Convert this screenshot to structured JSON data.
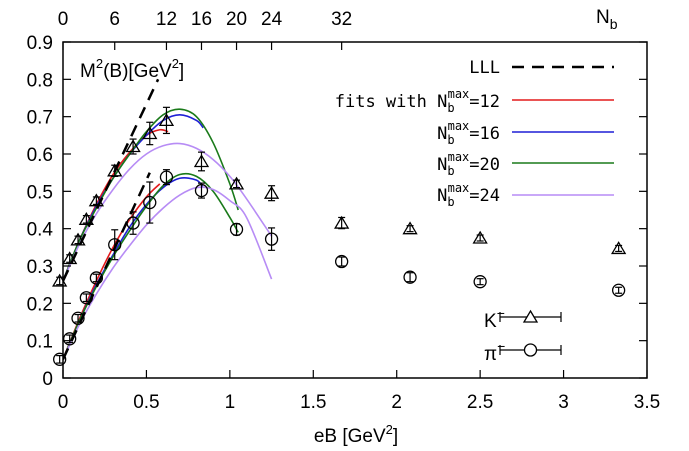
{
  "chart_data": {
    "type": "scatter",
    "xlabel": "eB [GeV",
    "xlabel_sup": "2",
    "xlabel_end": "]",
    "ylabel": "M",
    "ylabel_sup": "2",
    "ylabel_end": "(B)[GeV",
    "ylabel_sup2": "2",
    "ylabel_close": "]",
    "top_axis_label": "N",
    "top_axis_label_sub": "b",
    "xlim": [
      0,
      3.5
    ],
    "ylim": [
      0,
      0.9
    ],
    "x_ticks": [
      "0",
      "0.5",
      "1",
      "1.5",
      "2",
      "2.5",
      "3",
      "3.5"
    ],
    "y_ticks": [
      "0",
      "0.1",
      "0.2",
      "0.3",
      "0.4",
      "0.5",
      "0.6",
      "0.7",
      "0.8",
      "0.9"
    ],
    "top_ticks": [
      "0",
      "6",
      "12",
      "16",
      "20",
      "24",
      "32"
    ],
    "legend": {
      "lll": "LLL",
      "fits_prefix": "fits with",
      "N": "N",
      "sub": "b",
      "sup": "max",
      "fit_values": [
        "=12",
        "=16",
        "=20",
        "=24"
      ],
      "kaon": "K",
      "pion": "π",
      "minus": "−"
    },
    "colors": {
      "fit12": "#e31a1c",
      "fit16": "#1f1fd6",
      "fit20": "#1a7a1a",
      "fit24": "#b78cf5",
      "lll": "#000000",
      "markers": "#000000"
    },
    "series": [
      {
        "name": "K",
        "marker": "triangle",
        "points": [
          {
            "x": -0.02,
            "y": 0.26,
            "err": 0.01
          },
          {
            "x": 0.04,
            "y": 0.32,
            "err": 0.01
          },
          {
            "x": 0.09,
            "y": 0.37,
            "err": 0.01
          },
          {
            "x": 0.14,
            "y": 0.425,
            "err": 0.01
          },
          {
            "x": 0.2,
            "y": 0.475,
            "err": 0.01
          },
          {
            "x": 0.31,
            "y": 0.555,
            "err": 0.015
          },
          {
            "x": 0.42,
            "y": 0.62,
            "err": 0.02
          },
          {
            "x": 0.52,
            "y": 0.655,
            "err": 0.03
          },
          {
            "x": 0.62,
            "y": 0.69,
            "err": 0.035
          },
          {
            "x": 0.83,
            "y": 0.58,
            "err": 0.025
          },
          {
            "x": 1.04,
            "y": 0.52,
            "err": 0.01
          },
          {
            "x": 1.25,
            "y": 0.495,
            "err": 0.02
          },
          {
            "x": 1.67,
            "y": 0.415,
            "err": 0.015
          },
          {
            "x": 2.08,
            "y": 0.4,
            "err": 0.008
          },
          {
            "x": 2.5,
            "y": 0.375,
            "err": 0.008
          },
          {
            "x": 3.33,
            "y": 0.347,
            "err": 0.008
          }
        ]
      },
      {
        "name": "π",
        "marker": "circle",
        "points": [
          {
            "x": -0.02,
            "y": 0.05,
            "err": 0.01
          },
          {
            "x": 0.04,
            "y": 0.105,
            "err": 0.01
          },
          {
            "x": 0.09,
            "y": 0.16,
            "err": 0.01
          },
          {
            "x": 0.14,
            "y": 0.215,
            "err": 0.01
          },
          {
            "x": 0.2,
            "y": 0.268,
            "err": 0.01
          },
          {
            "x": 0.31,
            "y": 0.357,
            "err": 0.04
          },
          {
            "x": 0.42,
            "y": 0.415,
            "err": 0.03
          },
          {
            "x": 0.52,
            "y": 0.47,
            "err": 0.055
          },
          {
            "x": 0.62,
            "y": 0.538,
            "err": 0.02
          },
          {
            "x": 0.83,
            "y": 0.502,
            "err": 0.02
          },
          {
            "x": 1.04,
            "y": 0.398,
            "err": 0.015
          },
          {
            "x": 1.25,
            "y": 0.372,
            "err": 0.03
          },
          {
            "x": 1.67,
            "y": 0.312,
            "err": 0.012
          },
          {
            "x": 2.08,
            "y": 0.27,
            "err": 0.012
          },
          {
            "x": 2.5,
            "y": 0.258,
            "err": 0.008
          },
          {
            "x": 3.33,
            "y": 0.235,
            "err": 0.008
          }
        ]
      }
    ],
    "lll_lines": [
      {
        "x": [
          0,
          0.57
        ],
        "y": [
          0.26,
          0.8
        ]
      },
      {
        "x": [
          0,
          0.52
        ],
        "y": [
          0.05,
          0.55
        ]
      }
    ],
    "fits": [
      {
        "key": "fit12",
        "curves": [
          {
            "x": [
              0,
              0.1,
              0.2,
              0.3,
              0.4,
              0.5,
              0.58,
              0.63
            ],
            "y": [
              0.26,
              0.37,
              0.465,
              0.545,
              0.605,
              0.65,
              0.665,
              0.66
            ]
          },
          {
            "x": [
              0,
              0.1,
              0.2,
              0.3,
              0.4,
              0.5,
              0.58
            ],
            "y": [
              0.05,
              0.16,
              0.26,
              0.35,
              0.425,
              0.485,
              0.52
            ]
          }
        ]
      },
      {
        "key": "fit16",
        "curves": [
          {
            "x": [
              0,
              0.1,
              0.2,
              0.3,
              0.4,
              0.5,
              0.6,
              0.7,
              0.8,
              0.84
            ],
            "y": [
              0.26,
              0.37,
              0.46,
              0.535,
              0.6,
              0.65,
              0.69,
              0.705,
              0.69,
              0.67
            ]
          },
          {
            "x": [
              0,
              0.1,
              0.2,
              0.3,
              0.4,
              0.5,
              0.6,
              0.7,
              0.8,
              0.84
            ],
            "y": [
              0.05,
              0.155,
              0.25,
              0.33,
              0.405,
              0.465,
              0.51,
              0.535,
              0.53,
              0.51
            ]
          }
        ]
      },
      {
        "key": "fit20",
        "curves": [
          {
            "x": [
              0,
              0.1,
              0.2,
              0.3,
              0.4,
              0.5,
              0.6,
              0.7,
              0.8,
              0.9,
              1.0,
              1.05
            ],
            "y": [
              0.26,
              0.37,
              0.455,
              0.535,
              0.6,
              0.66,
              0.705,
              0.72,
              0.7,
              0.63,
              0.52,
              0.45
            ]
          },
          {
            "x": [
              0,
              0.1,
              0.2,
              0.3,
              0.4,
              0.5,
              0.6,
              0.7,
              0.8,
              0.9,
              1.0,
              1.05
            ],
            "y": [
              0.05,
              0.155,
              0.245,
              0.325,
              0.395,
              0.46,
              0.515,
              0.545,
              0.54,
              0.5,
              0.43,
              0.39
            ]
          }
        ]
      },
      {
        "key": "fit24",
        "curves": [
          {
            "x": [
              0,
              0.1,
              0.2,
              0.3,
              0.4,
              0.5,
              0.6,
              0.7,
              0.8,
              0.9,
              1.0,
              1.1,
              1.25
            ],
            "y": [
              0.26,
              0.36,
              0.44,
              0.505,
              0.56,
              0.6,
              0.622,
              0.628,
              0.615,
              0.585,
              0.54,
              0.48,
              0.38
            ]
          },
          {
            "x": [
              0,
              0.1,
              0.2,
              0.3,
              0.4,
              0.5,
              0.6,
              0.7,
              0.8,
              0.9,
              1.0,
              1.1,
              1.25
            ],
            "y": [
              0.05,
              0.145,
              0.225,
              0.295,
              0.355,
              0.41,
              0.455,
              0.49,
              0.51,
              0.505,
              0.475,
              0.43,
              0.265
            ]
          }
        ]
      }
    ]
  }
}
